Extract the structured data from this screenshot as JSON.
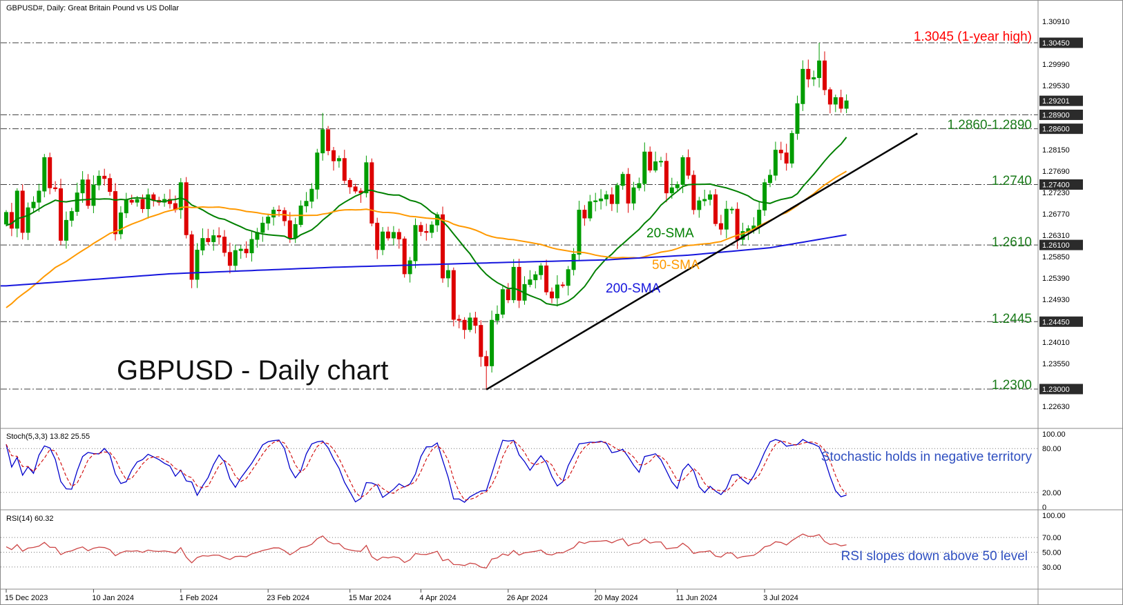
{
  "header": {
    "symbol_line": "GBPUSD#, Daily:  Great Britain Pound vs US Dollar"
  },
  "chart_title": "GBPUSD - Daily chart",
  "colors": {
    "bull": "#009c00",
    "bear": "#dd0000",
    "sma20": "#008000",
    "sma50": "#ff9900",
    "sma200": "#1515dd",
    "trendline": "#000000",
    "level_line": "#3c3c3c",
    "stoch_main": "#0000cc",
    "stoch_signal": "#d00000",
    "rsi": "#cc4444",
    "annotation_green": "#1a7a1a",
    "annotation_red": "#ff0000",
    "annotation_blue": "#3050c0",
    "axis_label_bg": "#2b2b2b",
    "separator": "#8a8a8a",
    "grid_dotted": "#777777"
  },
  "annotations": {
    "one_year_high": "1.3045 (1-year high)",
    "resistance_zone": "1.2860-1.2890",
    "level_12740": "1.2740",
    "level_12610": "1.2610",
    "level_12445": "1.2445",
    "level_12300": "1.2300",
    "sma20": "20-SMA",
    "sma50": "50-SMA",
    "sma200": "200-SMA"
  },
  "indicators": {
    "stoch": {
      "title": "Stoch(5,3,3) 13.82 25.55",
      "note": "Stochastic holds in negative territory",
      "current_k": 13.82,
      "current_d": 25.55,
      "axis": [
        {
          "v": 100,
          "t": "100.00"
        },
        {
          "v": 80,
          "t": "80.00"
        },
        {
          "v": 20,
          "t": "20.00"
        },
        {
          "v": 0,
          "t": "0"
        }
      ],
      "grid": [
        80,
        20
      ]
    },
    "rsi": {
      "title": "RSI(14) 60.32",
      "note": "RSI slopes down above 50 level",
      "current": 60.32,
      "axis": [
        {
          "v": 100,
          "t": "100.00"
        },
        {
          "v": 70,
          "t": "70.00"
        },
        {
          "v": 50,
          "t": "50.00"
        },
        {
          "v": 30,
          "t": "30.00"
        }
      ],
      "grid": [
        70,
        50,
        30
      ]
    }
  },
  "chart_data": {
    "type": "candlestick",
    "symbol": "GBPUSD",
    "timeframe": "Daily",
    "title": "GBPUSD - Daily chart",
    "ylim": [
      1.2227,
      1.3124
    ],
    "price_axis": {
      "min": 1.2263,
      "max": 1.3091,
      "step": 0.0046,
      "decimals": 5,
      "current": 1.29201,
      "current_label": "1.29201"
    },
    "x_ticks": {
      "labels": [
        "15 Dec 2023",
        "10 Jan 2024",
        "1 Feb 2024",
        "23 Feb 2024",
        "15 Mar 2024",
        "4 Apr 2024",
        "26 Apr 2024",
        "20 May 2024",
        "11 Jun 2024",
        "3 Jul 2024"
      ],
      "bar_indices": [
        0,
        16,
        32,
        48,
        63,
        76,
        92,
        108,
        123,
        139
      ]
    },
    "closes": [
      1.268,
      1.2646,
      1.2726,
      1.2637,
      1.269,
      1.2702,
      1.2726,
      1.2798,
      1.2733,
      1.2731,
      1.262,
      1.2663,
      1.2682,
      1.2722,
      1.275,
      1.2695,
      1.2739,
      1.2758,
      1.2753,
      1.2725,
      1.2634,
      1.2679,
      1.2706,
      1.2702,
      1.2708,
      1.2688,
      1.2718,
      1.2706,
      1.2702,
      1.2708,
      1.2699,
      1.2686,
      1.2744,
      1.2632,
      1.2536,
      1.2599,
      1.2624,
      1.2617,
      1.263,
      1.2627,
      1.2594,
      1.2566,
      1.2598,
      1.2601,
      1.2593,
      1.2622,
      1.2637,
      1.2657,
      1.267,
      1.2685,
      1.2684,
      1.2662,
      1.2625,
      1.2654,
      1.2694,
      1.2704,
      1.273,
      1.2808,
      1.2858,
      1.2813,
      1.2791,
      1.2796,
      1.2749,
      1.2735,
      1.2726,
      1.2722,
      1.2787,
      1.2657,
      1.26,
      1.2638,
      1.2625,
      1.2637,
      1.2623,
      1.2548,
      1.2576,
      1.2652,
      1.2639,
      1.2637,
      1.2653,
      1.2675,
      1.2539,
      1.2555,
      1.245,
      1.2448,
      1.2428,
      1.2453,
      1.2437,
      1.237,
      1.235,
      1.2448,
      1.2461,
      1.2514,
      1.2492,
      1.2562,
      1.2491,
      1.2525,
      1.2535,
      1.2546,
      1.2565,
      1.2509,
      1.2496,
      1.2524,
      1.2523,
      1.2557,
      1.259,
      1.2685,
      1.2668,
      1.2703,
      1.2705,
      1.2709,
      1.2718,
      1.2699,
      1.2738,
      1.2762,
      1.27,
      1.2733,
      1.2742,
      1.281,
      1.2771,
      1.2789,
      1.279,
      1.2722,
      1.2733,
      1.274,
      1.2798,
      1.276,
      1.2686,
      1.2705,
      1.2708,
      1.2718,
      1.2656,
      1.2644,
      1.2687,
      1.2687,
      1.2622,
      1.2639,
      1.2645,
      1.2651,
      1.2685,
      1.2744,
      1.276,
      1.2814,
      1.2808,
      1.2786,
      1.285,
      1.2914,
      1.2988,
      1.2967,
      1.297,
      1.3006,
      1.2944,
      1.2913,
      1.2927,
      1.2904,
      1.292
    ],
    "wick_overrides": [
      {
        "bar": 58,
        "high": 1.2894
      },
      {
        "bar": 88,
        "low": 1.2299
      },
      {
        "bar": 149,
        "high": 1.3045
      }
    ],
    "levels": [
      {
        "price": 1.3045
      },
      {
        "price": 1.289
      },
      {
        "price": 1.286
      },
      {
        "price": 1.274
      },
      {
        "price": 1.261
      },
      {
        "price": 1.2445
      },
      {
        "price": 1.23
      }
    ],
    "sma200_points": [
      [
        0,
        1.2522
      ],
      [
        30,
        1.2548
      ],
      [
        60,
        1.2562
      ],
      [
        90,
        1.2572
      ],
      [
        110,
        1.2578
      ],
      [
        125,
        1.2588
      ],
      [
        140,
        1.2604
      ],
      [
        154,
        1.2632
      ]
    ],
    "trendline": {
      "bar1": 88,
      "price1": 1.2299,
      "bar2": 167,
      "price2": 1.285
    }
  }
}
